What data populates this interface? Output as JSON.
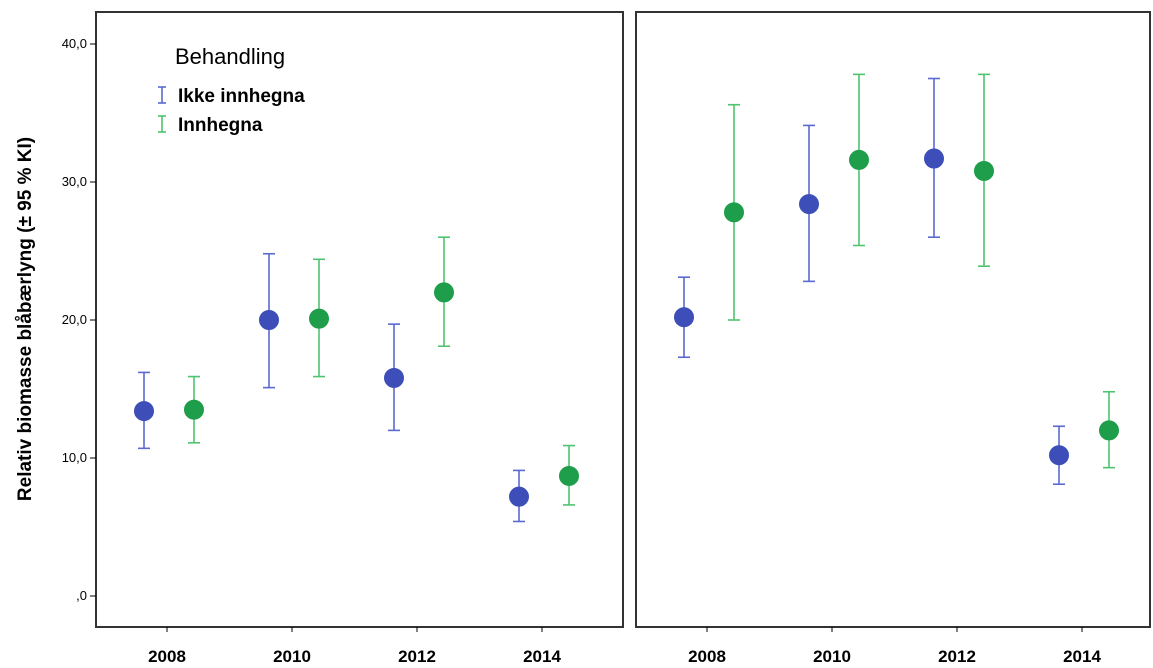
{
  "chart_data": {
    "type": "scatter",
    "ylabel": "Relativ biomasse blåbærlyng (± 95 % KI)",
    "ylim": [
      0,
      40
    ],
    "yticks": [
      {
        "value": 0,
        "label": ",0"
      },
      {
        "value": 10,
        "label": "10,0"
      },
      {
        "value": 20,
        "label": "20,0"
      },
      {
        "value": 30,
        "label": "30,0"
      },
      {
        "value": 40,
        "label": "40,0"
      }
    ],
    "categories": [
      "2008",
      "2010",
      "2012",
      "2014"
    ],
    "legend": {
      "title": "Behandling",
      "placement": "top-left",
      "items": [
        "Ikke innhegna",
        "Innhegna"
      ]
    },
    "colors": {
      "Ikke innhegna": "#3d4eb8",
      "Innhegna": "#1e9e4a",
      "Ikke innhegna_bar": "#5a6ad0",
      "Innhegna_bar": "#4fc46f"
    },
    "panels": [
      {
        "series": [
          {
            "name": "Ikke innhegna",
            "points": [
              {
                "x": "2008",
                "y": 13.4,
                "low": 10.7,
                "high": 16.2
              },
              {
                "x": "2010",
                "y": 20.0,
                "low": 15.1,
                "high": 24.8
              },
              {
                "x": "2012",
                "y": 15.8,
                "low": 12.0,
                "high": 19.7
              },
              {
                "x": "2014",
                "y": 7.2,
                "low": 5.4,
                "high": 9.1
              }
            ]
          },
          {
            "name": "Innhegna",
            "points": [
              {
                "x": "2008",
                "y": 13.5,
                "low": 11.1,
                "high": 15.9
              },
              {
                "x": "2010",
                "y": 20.1,
                "low": 15.9,
                "high": 24.4
              },
              {
                "x": "2012",
                "y": 22.0,
                "low": 18.1,
                "high": 26.0
              },
              {
                "x": "2014",
                "y": 8.7,
                "low": 6.6,
                "high": 10.9
              }
            ]
          }
        ]
      },
      {
        "series": [
          {
            "name": "Ikke innhegna",
            "points": [
              {
                "x": "2008",
                "y": 20.2,
                "low": 17.3,
                "high": 23.1
              },
              {
                "x": "2010",
                "y": 28.4,
                "low": 22.8,
                "high": 34.1
              },
              {
                "x": "2012",
                "y": 31.7,
                "low": 26.0,
                "high": 37.5
              },
              {
                "x": "2014",
                "y": 10.2,
                "low": 8.1,
                "high": 12.3
              }
            ]
          },
          {
            "name": "Innhegna",
            "points": [
              {
                "x": "2008",
                "y": 27.8,
                "low": 20.0,
                "high": 35.6
              },
              {
                "x": "2010",
                "y": 31.6,
                "low": 25.4,
                "high": 37.8
              },
              {
                "x": "2012",
                "y": 30.8,
                "low": 23.9,
                "high": 37.8
              },
              {
                "x": "2014",
                "y": 12.0,
                "low": 9.3,
                "high": 14.8
              }
            ]
          }
        ]
      }
    ]
  }
}
